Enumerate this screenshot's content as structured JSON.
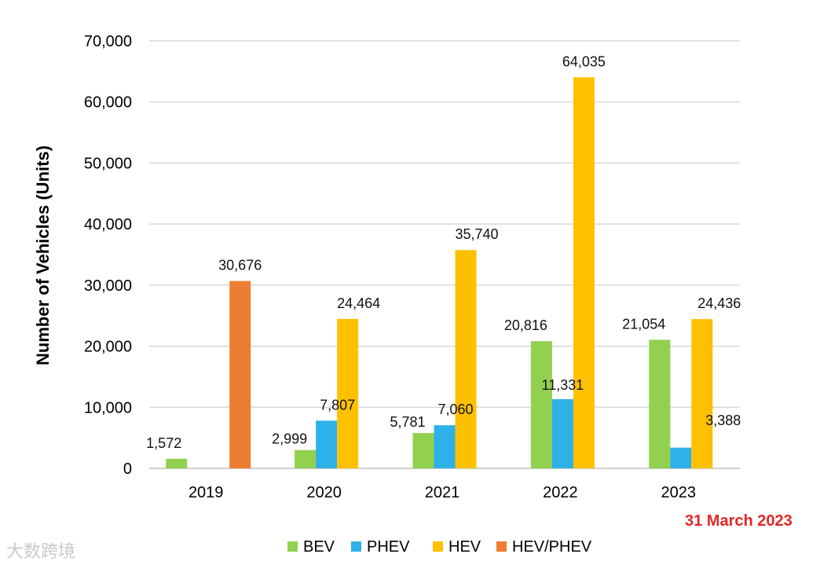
{
  "chart_data": {
    "type": "bar",
    "title": "",
    "xlabel": "",
    "ylabel": "Number of Vehicles (Units)",
    "ylim": [
      0,
      70000
    ],
    "yticks": [
      0,
      10000,
      20000,
      30000,
      40000,
      50000,
      60000,
      70000
    ],
    "ytick_labels": [
      "0",
      "10,000",
      "20,000",
      "30,000",
      "40,000",
      "50,000",
      "60,000",
      "70,000"
    ],
    "categories": [
      "2019",
      "2020",
      "2021",
      "2022",
      "2023"
    ],
    "grid": true,
    "legend_position": "bottom",
    "series": [
      {
        "name": "BEV",
        "color": "#92d050",
        "values": [
          1572,
          2999,
          5781,
          20816,
          21054
        ],
        "labels": [
          "1,572",
          "2,999",
          "5,781",
          "20,816",
          "21,054"
        ]
      },
      {
        "name": "PHEV",
        "color": "#2eb1e8",
        "values": [
          null,
          7807,
          7060,
          11331,
          3388
        ],
        "labels": [
          null,
          "7,807",
          "7,060",
          "11,331",
          "3,388"
        ]
      },
      {
        "name": "HEV",
        "color": "#ffc000",
        "values": [
          null,
          24464,
          35740,
          64035,
          24436
        ],
        "labels": [
          null,
          "24,464",
          "35,740",
          "64,035",
          "24,436"
        ]
      },
      {
        "name": "HEV/PHEV",
        "color": "#ed7d31",
        "values": [
          30676,
          null,
          null,
          null,
          null
        ],
        "labels": [
          "30,676",
          null,
          null,
          null,
          null
        ]
      }
    ]
  },
  "note": "31 March 2023",
  "watermark": "大数跨境"
}
